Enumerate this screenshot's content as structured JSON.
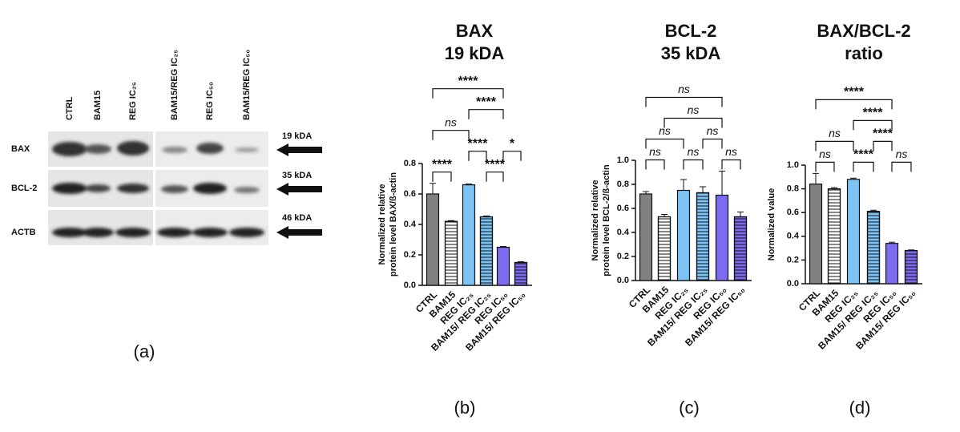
{
  "blot": {
    "panel_label": "(a)",
    "lanes": [
      "CTRL",
      "BAM15",
      "REG IC₂₅",
      "BAM15/REG IC₂₅",
      "REG IC₅₀",
      "BAM15/REG IC₅₀"
    ],
    "rows": [
      {
        "name": "BAX",
        "size": "19 kDA"
      },
      {
        "name": "BCL-2",
        "size": "35 kDA"
      },
      {
        "name": "ACTB",
        "size": "46 kDA"
      }
    ]
  },
  "chart_data": [
    {
      "type": "bar",
      "panel_label": "(b)",
      "title": [
        "BAX",
        "19 kDA"
      ],
      "ylabel": [
        "Normalized relative",
        "protein level BAX/ß-actin"
      ],
      "categories": [
        "CTRL",
        "BAM15",
        "REG IC₂₅",
        "BAM15/ REG IC₂₅",
        "REG IC₅₀",
        "BAM15/ REG IC₅₀"
      ],
      "values": [
        0.6,
        0.42,
        0.66,
        0.45,
        0.25,
        0.15
      ],
      "errors": [
        0.07,
        0.005,
        0.005,
        0.005,
        0.005,
        0.005
      ],
      "colors": [
        "#808080",
        "#ffffff",
        "#7cc3f5",
        "#7cc3f5",
        "#7b6cf0",
        "#7b6cf0"
      ],
      "hatched": [
        false,
        true,
        false,
        true,
        false,
        true
      ],
      "ylim": [
        0,
        0.8
      ],
      "yticks": [
        {
          "value": 0,
          "label": "0.0"
        },
        0.2,
        0.4,
        0.6,
        0.8
      ],
      "comparisons": [
        {
          "pair": [
            0,
            1
          ],
          "label": "****"
        },
        {
          "pair": [
            3,
            4
          ],
          "label": "****"
        },
        {
          "pair": [
            2,
            3
          ],
          "label": "****"
        },
        {
          "pair": [
            4,
            5
          ],
          "label": "*"
        },
        {
          "pair": [
            0,
            2
          ],
          "label": "ns"
        },
        {
          "pair": [
            2,
            4
          ],
          "label": "****"
        },
        {
          "pair": [
            0,
            4
          ],
          "label": "****"
        }
      ]
    },
    {
      "type": "bar",
      "panel_label": "(c)",
      "title": [
        "BCL-2",
        "35 kDA"
      ],
      "ylabel": [
        "Normalized relative",
        "protein level BCL-2/ß-actin"
      ],
      "categories": [
        "CTRL",
        "BAM15",
        "REG IC₂₅",
        "BAM15/ REG IC₂₅",
        "REG IC₅₀",
        "BAM15/ REG IC₅₀"
      ],
      "values": [
        0.72,
        0.53,
        0.75,
        0.73,
        0.71,
        0.53
      ],
      "errors": [
        0.02,
        0.02,
        0.09,
        0.05,
        0.2,
        0.04
      ],
      "colors": [
        "#808080",
        "#ffffff",
        "#7cc3f5",
        "#7cc3f5",
        "#7b6cf0",
        "#7b6cf0"
      ],
      "hatched": [
        false,
        true,
        false,
        true,
        false,
        true
      ],
      "ylim": [
        0,
        1
      ],
      "yticks": [
        {
          "value": 0,
          "label": "0.0"
        },
        0.2,
        0.4,
        0.6,
        0.8,
        {
          "value": 1,
          "label": "1.0"
        }
      ],
      "comparisons": [
        {
          "pair": [
            0,
            1
          ],
          "label": "ns"
        },
        {
          "pair": [
            2,
            3
          ],
          "label": "ns"
        },
        {
          "pair": [
            4,
            5
          ],
          "label": "ns"
        },
        {
          "pair": [
            0,
            2
          ],
          "label": "ns"
        },
        {
          "pair": [
            3,
            4
          ],
          "label": "ns"
        },
        {
          "pair": [
            1,
            4
          ],
          "label": "ns"
        },
        {
          "pair": [
            0,
            4
          ],
          "label": "ns"
        }
      ]
    },
    {
      "type": "bar",
      "panel_label": "(d)",
      "title": [
        "BAX/BCL-2",
        "ratio"
      ],
      "ylabel": [
        "Normalized value"
      ],
      "categories": [
        "CTRL",
        "BAM15",
        "REG IC₂₅",
        "BAM15/ REG IC₂₅",
        "REG IC₅₀",
        "BAM15/ REG IC₅₀"
      ],
      "values": [
        0.84,
        0.8,
        0.88,
        0.61,
        0.34,
        0.28
      ],
      "errors": [
        0.09,
        0.01,
        0.01,
        0.01,
        0.01,
        0.005
      ],
      "colors": [
        "#808080",
        "#ffffff",
        "#7cc3f5",
        "#7cc3f5",
        "#7b6cf0",
        "#7b6cf0"
      ],
      "hatched": [
        false,
        true,
        false,
        true,
        false,
        true
      ],
      "ylim": [
        0,
        1
      ],
      "yticks": [
        {
          "value": 0,
          "label": "0.0"
        },
        0.2,
        0.4,
        0.6,
        0.8,
        {
          "value": 1,
          "label": "1.0"
        }
      ],
      "comparisons": [
        {
          "pair": [
            0,
            1
          ],
          "label": "ns"
        },
        {
          "pair": [
            2,
            3
          ],
          "label": "****"
        },
        {
          "pair": [
            4,
            5
          ],
          "label": "ns"
        },
        {
          "pair": [
            0,
            2
          ],
          "label": "ns"
        },
        {
          "pair": [
            3,
            4
          ],
          "label": "****"
        },
        {
          "pair": [
            2,
            4
          ],
          "label": "****"
        },
        {
          "pair": [
            0,
            4
          ],
          "label": "****"
        }
      ]
    }
  ]
}
